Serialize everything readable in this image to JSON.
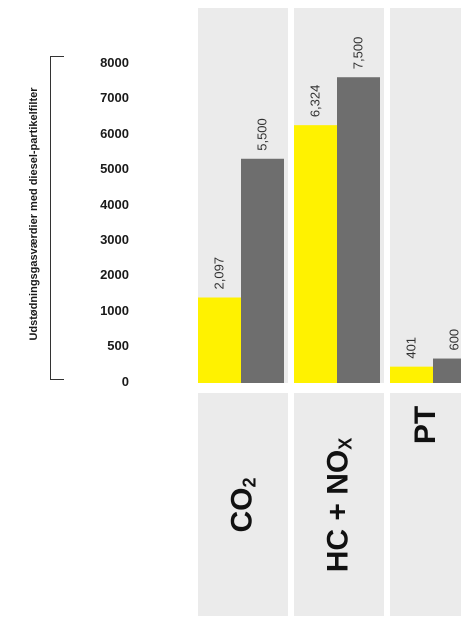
{
  "chart_data": {
    "type": "bar",
    "ylabel": "Udstødningsgasværdier med diesel-partikelfilter",
    "yticks": [
      "8000",
      "7000",
      "6000",
      "5000",
      "4000",
      "3000",
      "2000",
      "1000",
      "500",
      "0"
    ],
    "categories": [
      {
        "main": "CO",
        "sub": "2",
        "suffix": ""
      },
      {
        "main": "HC + NO",
        "sub": "X",
        "suffix": ""
      },
      {
        "main": "PT",
        "sub": "",
        "suffix": ""
      }
    ],
    "series": [
      {
        "color": "#fff200",
        "values": [
          2097,
          6324,
          401
        ],
        "labels": [
          "2,097",
          "6,324",
          "401"
        ]
      },
      {
        "color": "#6e6e6e",
        "values": [
          5500,
          7500,
          600
        ],
        "labels": [
          "5,500",
          "7,500",
          "600"
        ]
      }
    ],
    "panel_color": "#ebebeb",
    "grid": false
  }
}
